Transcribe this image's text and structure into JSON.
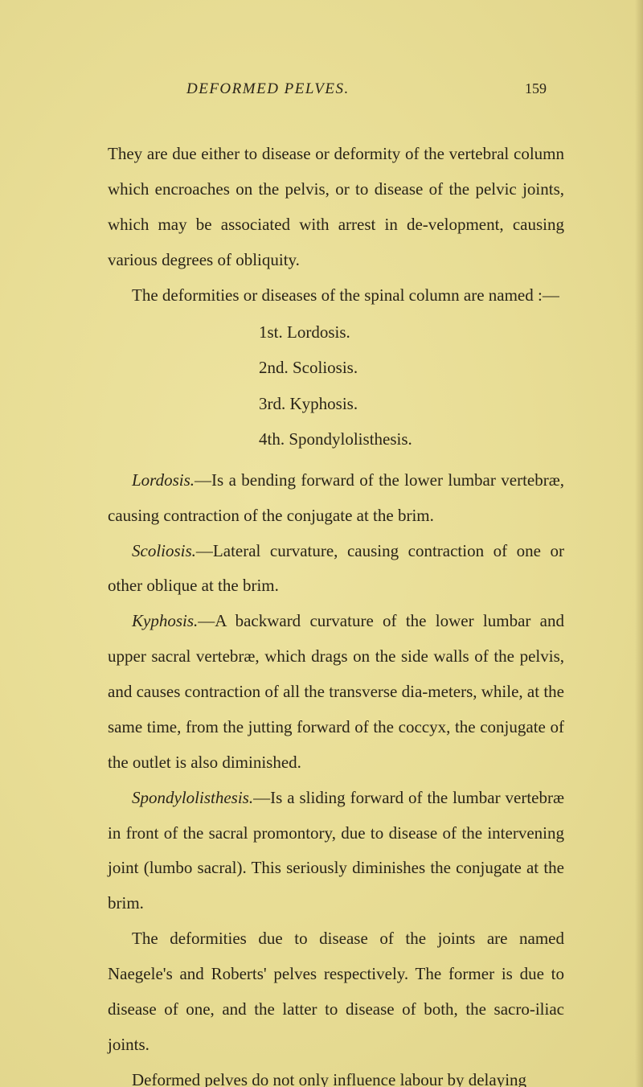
{
  "page": {
    "running_title": "DEFORMED PELVES.",
    "page_number": "159",
    "background_color": "#e8dd95",
    "text_color": "#2a2418",
    "body_fontsize": 21,
    "line_height": 2.09,
    "title_fontsize": 19,
    "pagenum_fontsize": 18
  },
  "para1": "They are due either to disease or deformity of the vertebral column which encroaches on the pelvis, or to disease of the pelvic joints, which may be associated with arrest in de-velopment, causing various degrees of obliquity.",
  "para2": "The deformities or diseases of the spinal column are named :—",
  "list": [
    "1st.  Lordosis.",
    "2nd.  Scoliosis.",
    "3rd.  Kyphosis.",
    "4th.  Spondylolisthesis."
  ],
  "def1": {
    "label": "Lordosis.",
    "text": "—Is a bending forward of the lower lumbar vertebræ, causing contraction of the conjugate at the brim."
  },
  "def2": {
    "label": "Scoliosis.",
    "text": "—Lateral curvature, causing contraction of one or other oblique at the brim."
  },
  "def3": {
    "label": "Kyphosis.",
    "text": "—A backward curvature of the lower lumbar and upper sacral vertebræ, which drags on the side walls of the pelvis, and causes contraction of all the transverse dia-meters, while, at the same time, from the jutting forward of the coccyx, the conjugate of the outlet is also diminished."
  },
  "def4": {
    "label": "Spondylolisthesis.",
    "text": "—Is a sliding forward of the lumbar vertebræ in front of the sacral promontory, due to disease of the intervening joint (lumbo sacral). This seriously diminishes the conjugate at the brim."
  },
  "para3": "The deformities due to disease of the joints are named Naegele's and Roberts' pelves respectively. The former is due to disease of one, and the latter to disease of both, the sacro-iliac joints.",
  "para4": "Deformed pelves do not only influence labour by delaying"
}
